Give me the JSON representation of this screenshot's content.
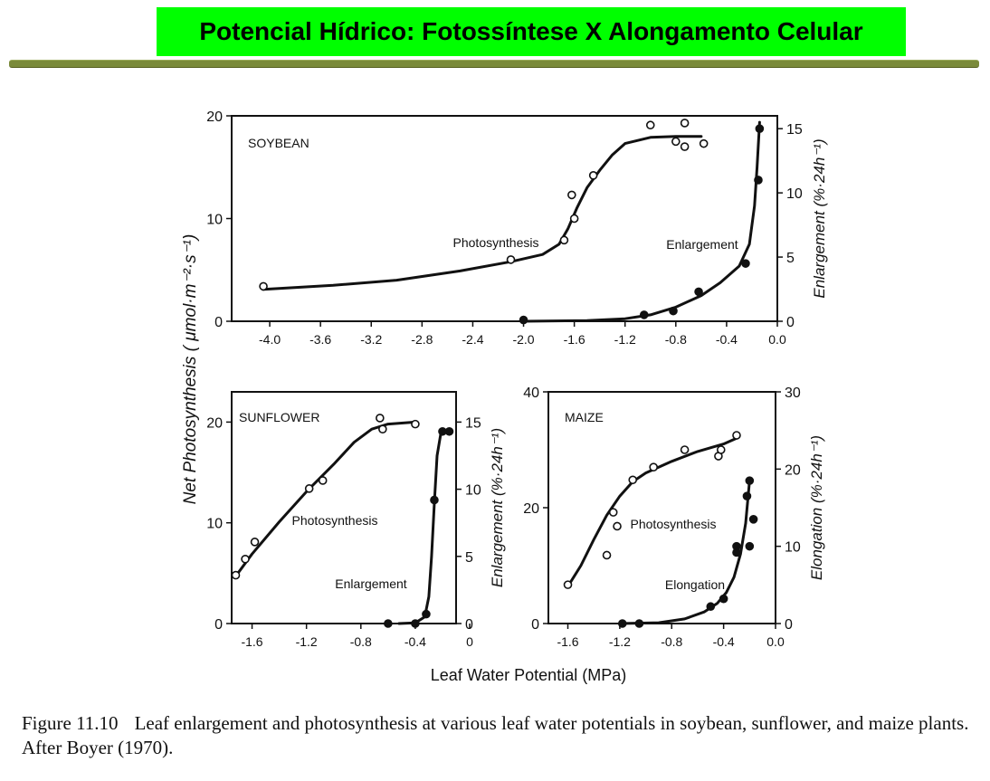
{
  "header": {
    "title": "Potencial Hídrico: Fotossíntese  X Alongamento Celular"
  },
  "figure": {
    "y_label_shared": "Net Photosynthesis  ( μmol·m⁻²·s⁻¹)",
    "x_label_shared": "Leaf  Water  Potential  (MPa)",
    "caption_label": "Figure 11.10",
    "caption_text": "Leaf enlargement and photosynthesis at various leaf water potentials in soybean, sunflower, and maize plants. After Boyer (1970).",
    "colors": {
      "banner": "#00ff00",
      "rule": "#7a8a3a",
      "ink": "#111111"
    }
  },
  "chart_data": [
    {
      "type": "scatter",
      "title": "SOYBEAN",
      "xlim": [
        -4.3,
        0
      ],
      "ylim": [
        0,
        20
      ],
      "y2lim": [
        0,
        16
      ],
      "x_ticks": [
        "-4.0",
        "-3.6",
        "-3.2",
        "-2.8",
        "-2.4",
        "-2.0",
        "-1.6",
        "-1.2",
        "-0.8",
        "-0.4",
        "0.0"
      ],
      "y_ticks": [
        "0",
        "10",
        "20"
      ],
      "y2_ticks": [
        "0",
        "5",
        "10",
        "15"
      ],
      "y2label": "Enlargement (%·24h⁻¹)",
      "series": [
        {
          "name": "Photosynthesis",
          "axis": "left",
          "marker": "open",
          "points": [
            [
              -4.05,
              3.4
            ],
            [
              -2.1,
              6.0
            ],
            [
              -1.68,
              7.9
            ],
            [
              -1.6,
              10.0
            ],
            [
              -1.62,
              12.3
            ],
            [
              -1.45,
              14.2
            ],
            [
              -1.0,
              19.1
            ],
            [
              -0.8,
              17.5
            ],
            [
              -0.73,
              19.3
            ],
            [
              -0.73,
              17.0
            ],
            [
              -0.58,
              17.3
            ]
          ],
          "curve": [
            [
              -4.05,
              3.1
            ],
            [
              -3.5,
              3.5
            ],
            [
              -3.0,
              4.0
            ],
            [
              -2.5,
              4.9
            ],
            [
              -2.1,
              5.8
            ],
            [
              -1.85,
              6.5
            ],
            [
              -1.72,
              7.5
            ],
            [
              -1.65,
              9.0
            ],
            [
              -1.58,
              11.0
            ],
            [
              -1.5,
              13.0
            ],
            [
              -1.4,
              14.7
            ],
            [
              -1.3,
              16.2
            ],
            [
              -1.2,
              17.3
            ],
            [
              -1.0,
              17.9
            ],
            [
              -0.8,
              18.0
            ],
            [
              -0.6,
              18.0
            ]
          ]
        },
        {
          "name": "Enlargement",
          "axis": "right",
          "marker": "filled",
          "points": [
            [
              -2.0,
              0.1
            ],
            [
              -1.05,
              0.5
            ],
            [
              -0.82,
              0.8
            ],
            [
              -0.62,
              2.3
            ],
            [
              -0.25,
              4.5
            ],
            [
              -0.15,
              11.0
            ],
            [
              -0.14,
              15.0
            ]
          ],
          "curve": [
            [
              -2.0,
              0.0
            ],
            [
              -1.5,
              0.05
            ],
            [
              -1.2,
              0.2
            ],
            [
              -1.0,
              0.5
            ],
            [
              -0.8,
              1.1
            ],
            [
              -0.6,
              2.0
            ],
            [
              -0.45,
              3.0
            ],
            [
              -0.3,
              4.3
            ],
            [
              -0.22,
              6.0
            ],
            [
              -0.18,
              9.0
            ],
            [
              -0.16,
              12.0
            ],
            [
              -0.14,
              15.5
            ]
          ]
        }
      ]
    },
    {
      "type": "scatter",
      "title": "SUNFLOWER",
      "xlim": [
        -1.75,
        -0.1
      ],
      "ylim": [
        0,
        23
      ],
      "y2lim": [
        0,
        17.25
      ],
      "x_ticks": [
        "-1.6",
        "-1.2",
        "-0.8",
        "-0.4",
        "0"
      ],
      "y_ticks": [
        "0",
        "10",
        "20"
      ],
      "y2_ticks": [
        "0",
        "5",
        "10",
        "15"
      ],
      "y2label": "Enlargement (%·24h⁻¹)",
      "series": [
        {
          "name": "Photosynthesis",
          "axis": "left",
          "marker": "open",
          "points": [
            [
              -1.72,
              4.8
            ],
            [
              -1.65,
              6.4
            ],
            [
              -1.58,
              8.1
            ],
            [
              -1.18,
              13.4
            ],
            [
              -1.08,
              14.2
            ],
            [
              -0.66,
              20.4
            ],
            [
              -0.64,
              19.3
            ],
            [
              -0.4,
              19.8
            ]
          ],
          "curve": [
            [
              -1.72,
              4.7
            ],
            [
              -1.6,
              6.9
            ],
            [
              -1.4,
              10.1
            ],
            [
              -1.2,
              13.1
            ],
            [
              -1.0,
              15.8
            ],
            [
              -0.85,
              18.0
            ],
            [
              -0.72,
              19.3
            ],
            [
              -0.6,
              19.8
            ],
            [
              -0.4,
              20.0
            ]
          ]
        },
        {
          "name": "Enlargement",
          "axis": "right",
          "marker": "filled",
          "points": [
            [
              -0.6,
              0.0
            ],
            [
              -0.4,
              0.0
            ],
            [
              -0.32,
              0.7
            ],
            [
              -0.26,
              9.2
            ],
            [
              -0.2,
              14.3
            ],
            [
              -0.15,
              14.3
            ]
          ],
          "curve": [
            [
              -0.52,
              0.0
            ],
            [
              -0.4,
              0.05
            ],
            [
              -0.33,
              0.5
            ],
            [
              -0.3,
              2.0
            ],
            [
              -0.28,
              5.0
            ],
            [
              -0.26,
              9.0
            ],
            [
              -0.24,
              12.5
            ],
            [
              -0.21,
              14.3
            ],
            [
              -0.15,
              14.4
            ]
          ]
        }
      ]
    },
    {
      "type": "scatter",
      "title": "MAIZE",
      "xlim": [
        -1.75,
        0
      ],
      "ylim": [
        0,
        40
      ],
      "y2lim": [
        0,
        30
      ],
      "x_ticks": [
        "-1.6",
        "-1.2",
        "-0.8",
        "-0.4",
        "0.0"
      ],
      "y_ticks": [
        "0",
        "20",
        "40"
      ],
      "y2_ticks": [
        "0",
        "10",
        "20",
        "30"
      ],
      "y2label": "Elongation (%·24h⁻¹)",
      "series": [
        {
          "name": "Photosynthesis",
          "axis": "left",
          "marker": "open",
          "points": [
            [
              -1.6,
              6.7
            ],
            [
              -1.3,
              11.8
            ],
            [
              -1.25,
              19.2
            ],
            [
              -1.22,
              16.8
            ],
            [
              -1.1,
              24.8
            ],
            [
              -0.94,
              27.0
            ],
            [
              -0.7,
              30.0
            ],
            [
              -0.44,
              28.9
            ],
            [
              -0.42,
              30.0
            ],
            [
              -0.3,
              32.5
            ]
          ],
          "curve": [
            [
              -1.6,
              6.4
            ],
            [
              -1.5,
              10.0
            ],
            [
              -1.4,
              14.5
            ],
            [
              -1.3,
              18.7
            ],
            [
              -1.2,
              22.0
            ],
            [
              -1.1,
              24.5
            ],
            [
              -1.0,
              26.0
            ],
            [
              -0.8,
              28.0
            ],
            [
              -0.6,
              29.7
            ],
            [
              -0.4,
              31.0
            ],
            [
              -0.3,
              32.0
            ]
          ]
        },
        {
          "name": "Elongation",
          "axis": "right",
          "marker": "filled",
          "points": [
            [
              -1.18,
              0.0
            ],
            [
              -1.05,
              0.0
            ],
            [
              -0.5,
              2.2
            ],
            [
              -0.4,
              3.2
            ],
            [
              -0.3,
              10.0
            ],
            [
              -0.3,
              9.2
            ],
            [
              -0.22,
              16.5
            ],
            [
              -0.2,
              10.0
            ],
            [
              -0.2,
              18.5
            ],
            [
              -0.17,
              13.5
            ]
          ],
          "curve": [
            [
              -1.2,
              0.0
            ],
            [
              -0.9,
              0.1
            ],
            [
              -0.7,
              0.6
            ],
            [
              -0.55,
              1.5
            ],
            [
              -0.45,
              2.6
            ],
            [
              -0.38,
              4.0
            ],
            [
              -0.32,
              6.0
            ],
            [
              -0.27,
              9.0
            ],
            [
              -0.23,
              13.0
            ],
            [
              -0.2,
              18.5
            ]
          ]
        }
      ]
    }
  ]
}
